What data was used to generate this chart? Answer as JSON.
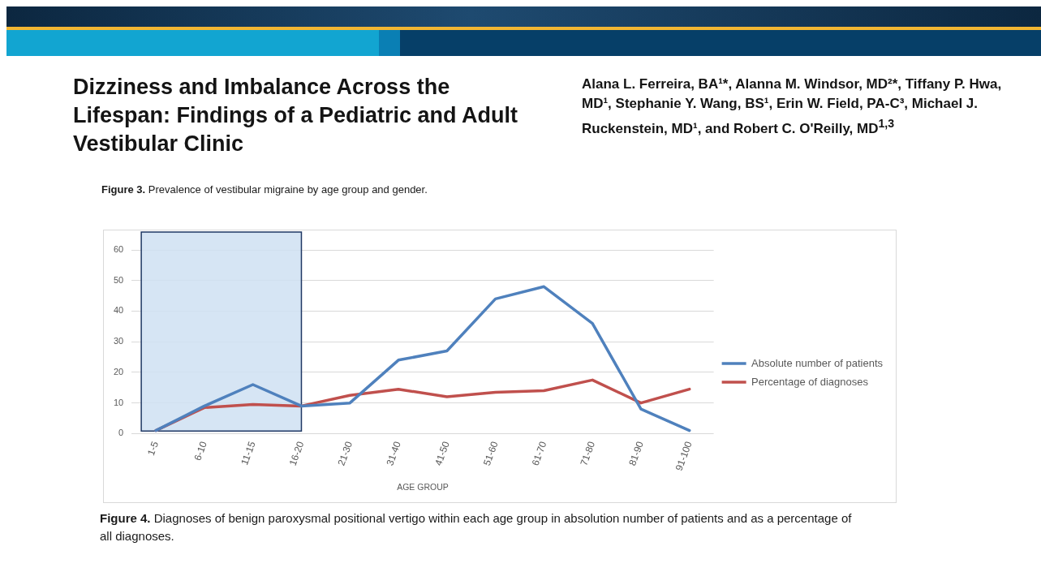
{
  "chart_data": {
    "type": "line",
    "title": "Dizziness and Imbalance Across the Lifespan: Findings of a Pediatric and Adult Vestibular Clinic",
    "subtitle": "Alana L. Ferreira, BA¹*, Alanna M. Windsor, MD²*, Tiffany P. Hwa, MD¹, Stephanie Y. Wang, BS¹, Erin W. Field, PA-C³, Michael J. Ruckenstein, MD¹, and Robert C. O'Reilly, MD$^{1,3}$",
    "annotations": [
      "Figure 3. Prevalence of vestibular migraine by age group and gender.",
      "Figure 4. Diagnoses of benign paroxysmal positional vertigo within each age group in absolution number of patients and as a percentage of all diagnoses."
    ],
    "xlabel": "AGE GROUP",
    "categories": [
      "1-5",
      "6-10",
      "11-15",
      "16-20",
      "21-30",
      "31-40",
      "41-50",
      "51-60",
      "61-70",
      "71-80",
      "81-90",
      "91-100"
    ],
    "series": [
      {
        "name": "Absolute number of patients",
        "color": "#4f81bd",
        "values": [
          1,
          9,
          16,
          9,
          10,
          24,
          27,
          44,
          48,
          36,
          8,
          1
        ]
      },
      {
        "name": "Percentage of diagnoses",
        "color": "#c0504d",
        "values": [
          1,
          8.5,
          9.5,
          9,
          12.5,
          14.5,
          12,
          13.5,
          14,
          17.5,
          10,
          14.5
        ]
      }
    ],
    "ylim": [
      0,
      60
    ],
    "yticks": [
      0,
      10,
      20,
      30,
      40,
      50,
      60
    ],
    "grid": "y",
    "legend": "right",
    "bands": [
      {
        "axis": "x",
        "from": "1-5",
        "to": "16-20",
        "color": "#cfe0f2"
      }
    ]
  }
}
